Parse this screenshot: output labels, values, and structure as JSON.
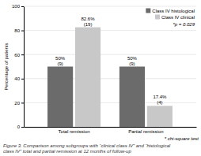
{
  "chart_data": {
    "type": "bar",
    "categories": [
      "Total remission",
      "Partial remission"
    ],
    "series": [
      {
        "name": "Class IV histological",
        "color": "#6b6b6b",
        "values": [
          50,
          50
        ],
        "value_labels": [
          "50%\n(9)",
          "50%\n(9)"
        ]
      },
      {
        "name": "Class IV clinical",
        "color": "#c8c8c8",
        "values": [
          82.6,
          17.4
        ],
        "value_labels": [
          "82.6%\n(19)",
          "17.4%\n(4)"
        ]
      }
    ],
    "y_label": "Percentage of patients",
    "ylim": [
      0,
      100
    ],
    "yticks": [
      0,
      20,
      40,
      60,
      80,
      100
    ],
    "grid": true,
    "legend": "upper right",
    "data_labels": true,
    "annotations": [
      "*p = 0.029",
      "* chi-square test"
    ],
    "caption": "Figure 3. Comparison among subgroups with “clinical class IV” and “histological\nclass IV” total and partial remission at 12 months of follow-up"
  }
}
